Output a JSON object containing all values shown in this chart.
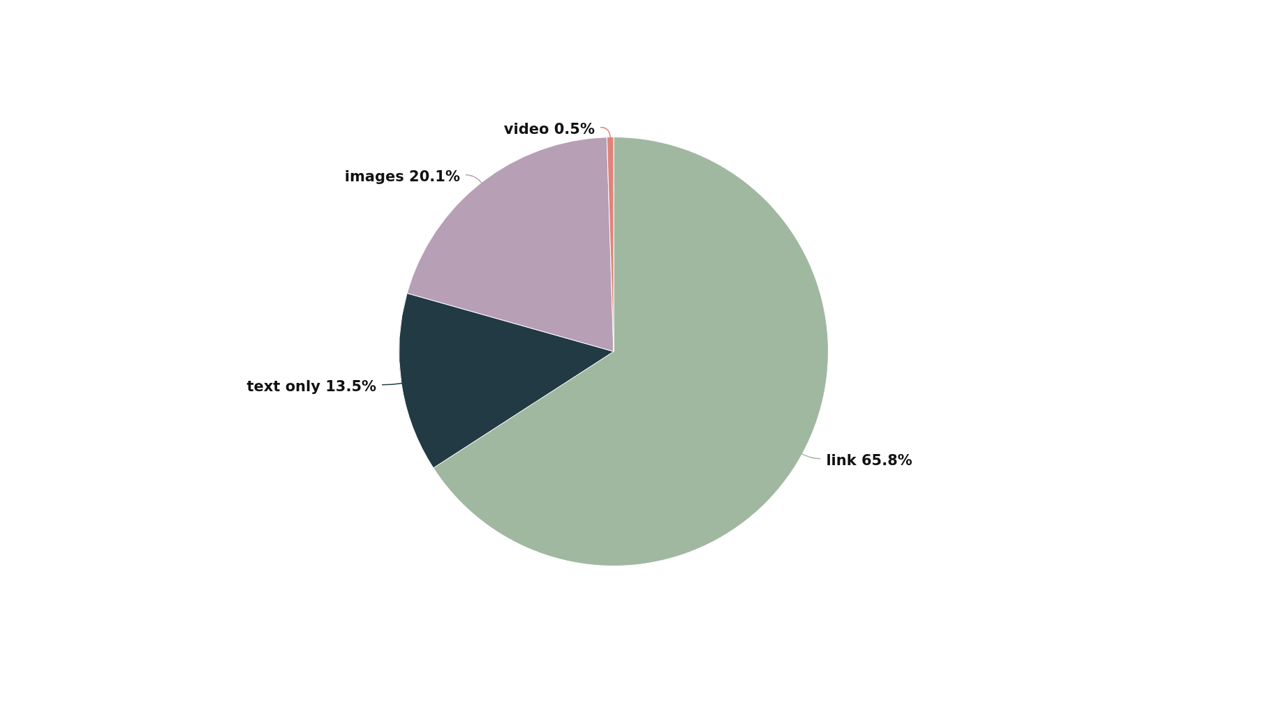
{
  "chart_data": {
    "type": "pie",
    "categories": [
      "link",
      "text only",
      "images",
      "video"
    ],
    "values": [
      65.8,
      13.5,
      20.1,
      0.5
    ],
    "value_labels": [
      "65.8%",
      "13.5%",
      "20.1%",
      "0.5%"
    ],
    "colors": [
      "#a1b8a0",
      "#223a44",
      "#b79fb5",
      "#e0837a"
    ],
    "legend": false
  }
}
